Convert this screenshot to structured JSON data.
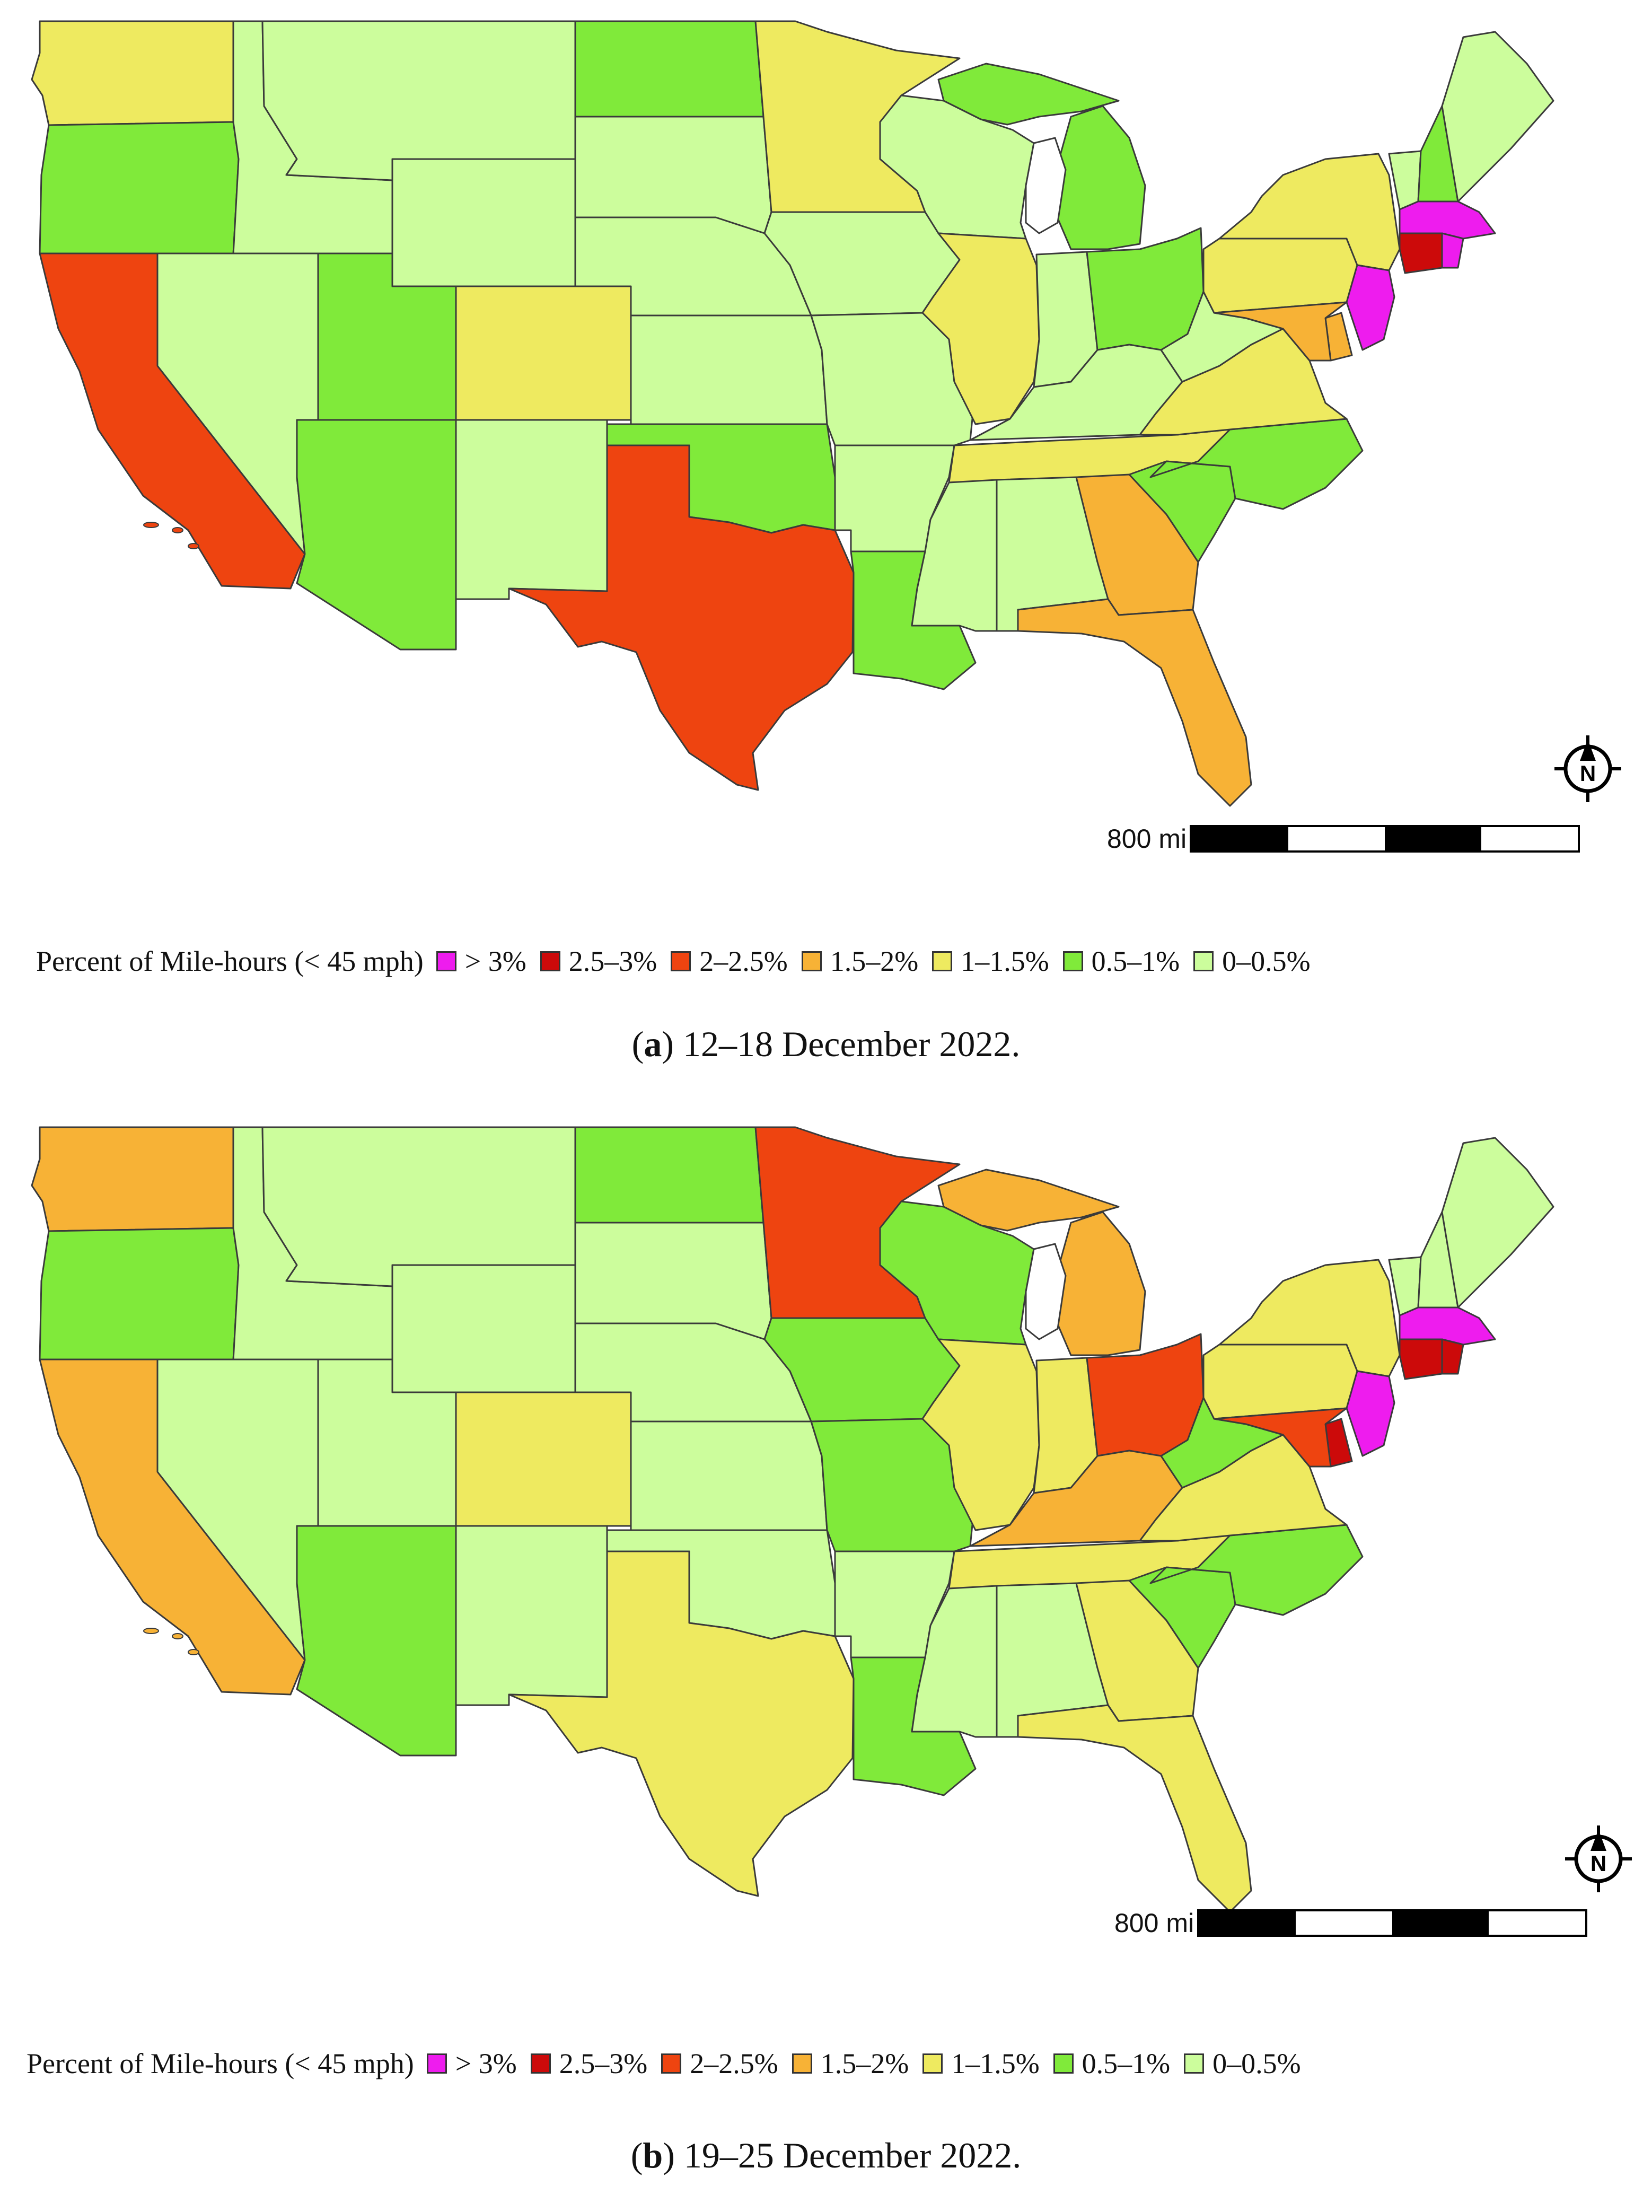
{
  "legend": {
    "title": "Percent of Mile-hours (< 45 mph)",
    "classes": [
      {
        "key": "c6",
        "label": "> 3%",
        "color": "#ee1cee"
      },
      {
        "key": "c5",
        "label": "2.5–3%",
        "color": "#cc0a0a"
      },
      {
        "key": "c4",
        "label": "2–2.5%",
        "color": "#ee4410"
      },
      {
        "key": "c3",
        "label": "1.5–2%",
        "color": "#f7b236"
      },
      {
        "key": "c2",
        "label": "1–1.5%",
        "color": "#eeea60"
      },
      {
        "key": "c1",
        "label": "0.5–1%",
        "color": "#80ea3a"
      },
      {
        "key": "c0",
        "label": "0–0.5%",
        "color": "#ccfd9c"
      }
    ]
  },
  "scale_label": "800 mi",
  "north_label": "N",
  "panels": [
    {
      "caption_letter": "a",
      "caption_text": " 12–18 December 2022.",
      "states": {
        "WA": "c2",
        "OR": "c1",
        "CA": "c4",
        "ID": "c0",
        "NV": "c0",
        "MT": "c0",
        "WY": "c0",
        "UT": "c1",
        "AZ": "c1",
        "CO": "c2",
        "NM": "c0",
        "ND": "c1",
        "SD": "c0",
        "NE": "c0",
        "KS": "c0",
        "OK": "c1",
        "TX": "c4",
        "MN": "c2",
        "IA": "c0",
        "MO": "c0",
        "AR": "c0",
        "LA": "c1",
        "WI": "c0",
        "IL": "c2",
        "MI": "c1",
        "IN": "c0",
        "OH": "c1",
        "KY": "c0",
        "TN": "c2",
        "MS": "c0",
        "AL": "c0",
        "GA": "c3",
        "FL": "c3",
        "SC": "c1",
        "NC": "c1",
        "VA": "c2",
        "WV": "c0",
        "PA": "c2",
        "NY": "c2",
        "VT": "c0",
        "NH": "c1",
        "ME": "c0",
        "MA": "c6",
        "RI": "c6",
        "CT": "c5",
        "NJ": "c6",
        "DE": "c3",
        "MD": "c3"
      }
    },
    {
      "caption_letter": "b",
      "caption_text": " 19–25 December 2022.",
      "states": {
        "WA": "c3",
        "OR": "c1",
        "CA": "c3",
        "ID": "c0",
        "NV": "c0",
        "MT": "c0",
        "WY": "c0",
        "UT": "c0",
        "AZ": "c1",
        "CO": "c2",
        "NM": "c0",
        "ND": "c1",
        "SD": "c0",
        "NE": "c0",
        "KS": "c0",
        "OK": "c0",
        "TX": "c2",
        "MN": "c4",
        "IA": "c1",
        "MO": "c1",
        "AR": "c0",
        "LA": "c1",
        "WI": "c1",
        "IL": "c2",
        "MI": "c3",
        "IN": "c2",
        "OH": "c4",
        "KY": "c3",
        "TN": "c2",
        "MS": "c0",
        "AL": "c0",
        "GA": "c2",
        "FL": "c2",
        "SC": "c1",
        "NC": "c1",
        "VA": "c2",
        "WV": "c1",
        "PA": "c2",
        "NY": "c2",
        "VT": "c0",
        "NH": "c0",
        "ME": "c0",
        "MA": "c6",
        "RI": "c5",
        "CT": "c5",
        "NJ": "c6",
        "DE": "c5",
        "MD": "c4"
      }
    }
  ]
}
